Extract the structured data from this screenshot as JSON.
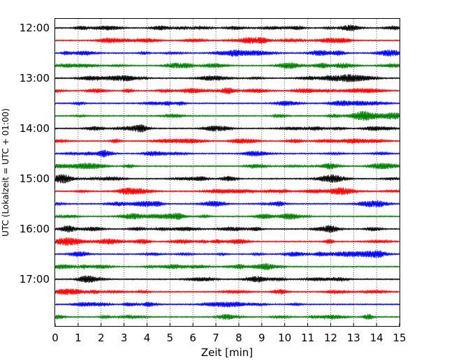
{
  "chart_data": {
    "type": "line",
    "title": "",
    "xlabel": "Zeit  [min]",
    "ylabel": "UTC (Lokalzeit = UTC + 01:00)",
    "xlim": [
      0,
      15
    ],
    "x_ticks": [
      "0",
      "1",
      "2",
      "3",
      "4",
      "5",
      "6",
      "7",
      "8",
      "9",
      "10",
      "11",
      "12",
      "13",
      "14",
      "15"
    ],
    "y_tick_labels": [
      "12:00",
      "13:00",
      "14:00",
      "15:00",
      "16:00",
      "17:00"
    ],
    "y_range_traces": [
      0,
      24
    ],
    "grid": "vertical-dotted",
    "trace_interval_minutes": 15,
    "trace_colors": [
      "#000000",
      "#ff0000",
      "#0000ff",
      "#008000"
    ],
    "series": [
      {
        "start": "12:00",
        "color": "#000000"
      },
      {
        "start": "12:15",
        "color": "#ff0000"
      },
      {
        "start": "12:30",
        "color": "#0000ff"
      },
      {
        "start": "12:45",
        "color": "#008000"
      },
      {
        "start": "13:00",
        "color": "#000000"
      },
      {
        "start": "13:15",
        "color": "#ff0000"
      },
      {
        "start": "13:30",
        "color": "#0000ff"
      },
      {
        "start": "13:45",
        "color": "#008000"
      },
      {
        "start": "14:00",
        "color": "#000000"
      },
      {
        "start": "14:15",
        "color": "#ff0000"
      },
      {
        "start": "14:30",
        "color": "#0000ff"
      },
      {
        "start": "14:45",
        "color": "#008000"
      },
      {
        "start": "15:00",
        "color": "#000000"
      },
      {
        "start": "15:15",
        "color": "#ff0000"
      },
      {
        "start": "15:30",
        "color": "#0000ff"
      },
      {
        "start": "15:45",
        "color": "#008000"
      },
      {
        "start": "16:00",
        "color": "#000000"
      },
      {
        "start": "16:15",
        "color": "#ff0000"
      },
      {
        "start": "16:30",
        "color": "#0000ff"
      },
      {
        "start": "16:45",
        "color": "#008000"
      },
      {
        "start": "17:00",
        "color": "#000000"
      },
      {
        "start": "17:15",
        "color": "#ff0000"
      },
      {
        "start": "17:30",
        "color": "#0000ff"
      },
      {
        "start": "17:45",
        "color": "#008000"
      }
    ]
  }
}
